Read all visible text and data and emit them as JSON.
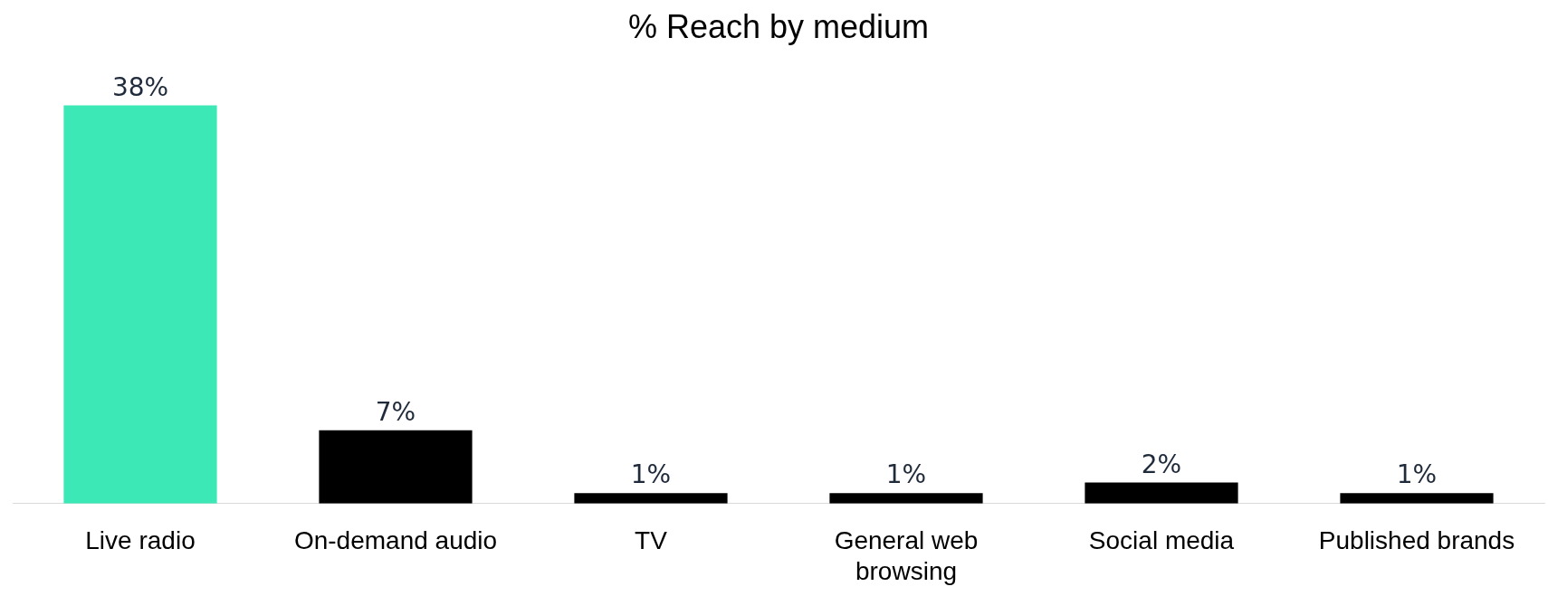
{
  "chart_data": {
    "type": "bar",
    "title": "% Reach by medium",
    "categories": [
      "Live radio",
      "On-demand audio",
      "TV",
      "General web browsing",
      "Social media",
      "Published brands"
    ],
    "values": [
      38,
      7,
      1,
      1,
      2,
      1
    ],
    "colors": [
      "#3be8b6",
      "#000000",
      "#000000",
      "#000000",
      "#000000",
      "#000000"
    ],
    "value_labels": [
      "38%",
      "7%",
      "1%",
      "1%",
      "2%",
      "1%"
    ],
    "grid": false,
    "legend": false
  }
}
